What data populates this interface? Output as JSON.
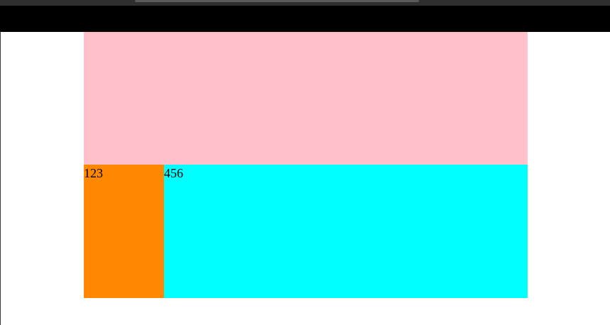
{
  "colors": {
    "chrome": "#2f2f2f",
    "top_bar": "#000000",
    "page_background": "#ffffff",
    "pink": "#ffc0cb",
    "orange": "#ff8800",
    "cyan": "#00ffff"
  },
  "panels": {
    "left_text": "123",
    "right_text": "456"
  }
}
